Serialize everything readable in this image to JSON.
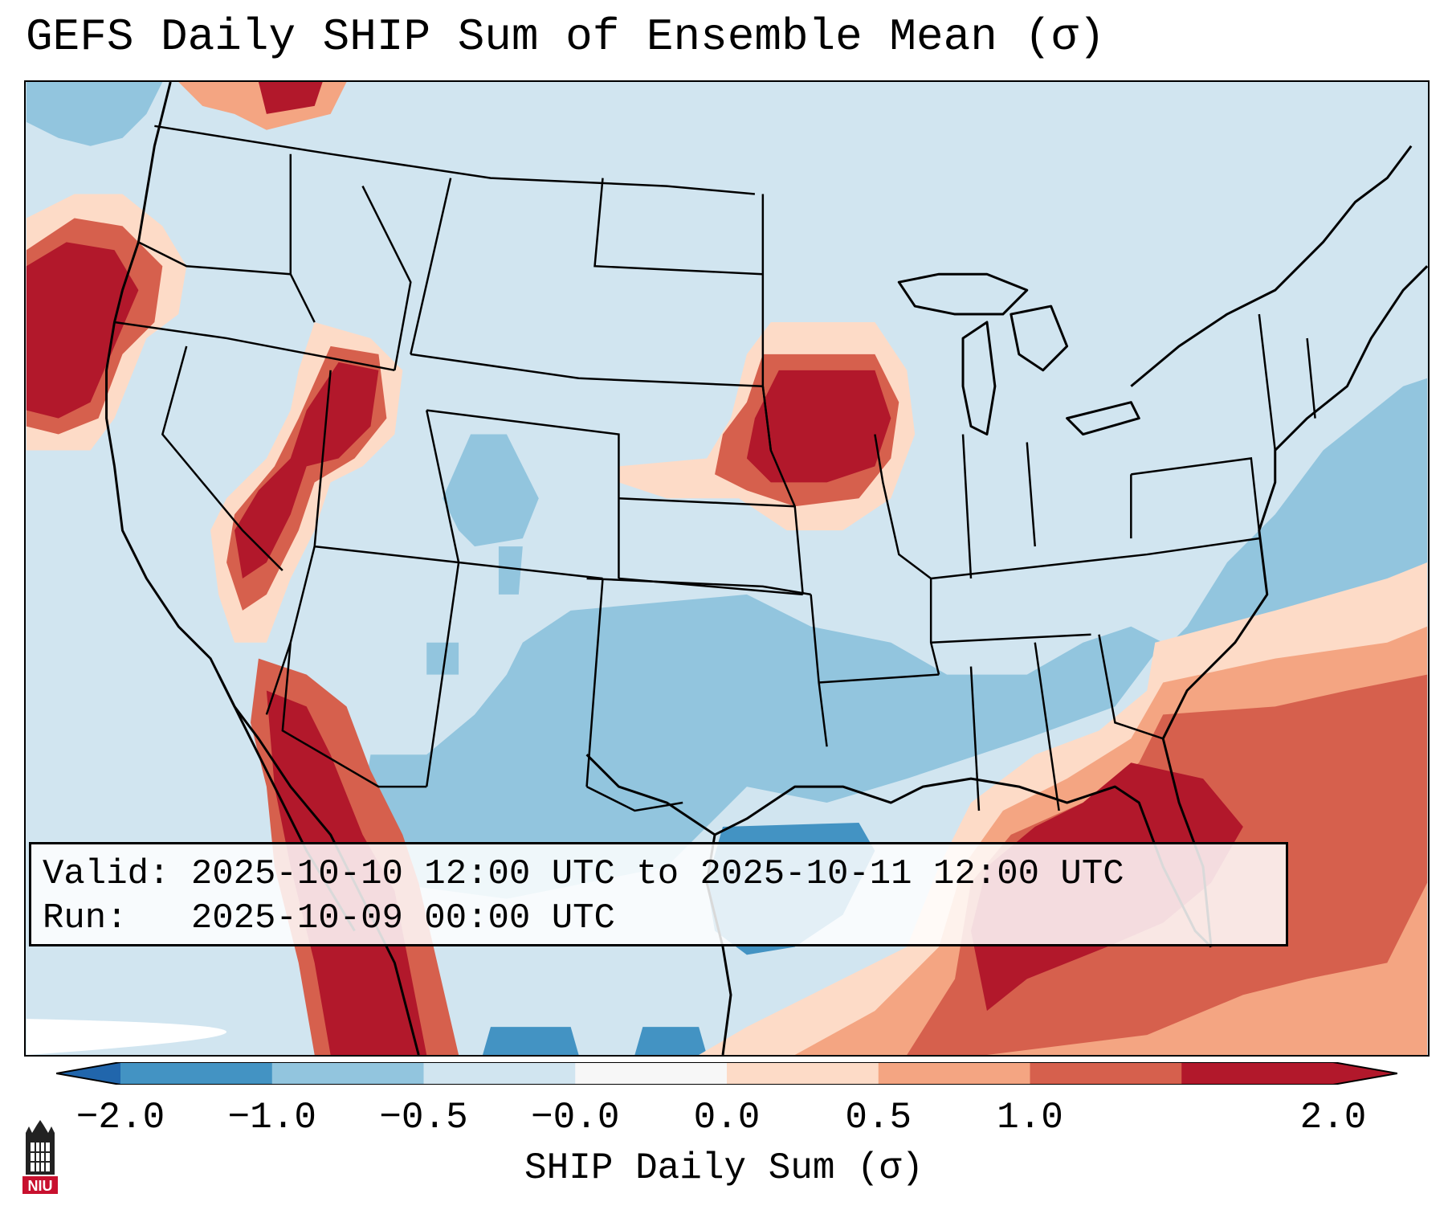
{
  "title": "GEFS Daily SHIP Sum of Ensemble Mean (σ)",
  "info": {
    "valid_label": "Valid:",
    "valid_value": "2025-10-10 12:00 UTC to 2025-10-11 12:00 UTC",
    "run_label": "Run:",
    "run_value": "2025-10-09 00:00 UTC"
  },
  "colorbar": {
    "label": "SHIP Daily Sum (σ)",
    "ticks": [
      "−2.0",
      "−1.0",
      "−0.5",
      "−0.0",
      "0.0",
      "0.5",
      "1.0",
      "2.0"
    ],
    "colors": [
      "#4393c3",
      "#92c5de",
      "#d1e5f0",
      "#f7f7f7",
      "#fddbc7",
      "#f4a582",
      "#d6604d",
      "#b2182b"
    ],
    "extend_low_color": "#2166ac",
    "extend_high_color": "#b2182b"
  },
  "map": {
    "region": "Contiguous United States",
    "background_color": "#d1e5f0",
    "outside_domain_color": "#ffffff",
    "line_color": "#000000",
    "features": [
      "Pacific Northwest high anomaly",
      "Iowa high anomaly",
      "Gulf of Mexico & Florida high anomaly",
      "Atlantic high anomaly",
      "Gulf Coast low anomaly"
    ]
  },
  "logo": {
    "text": "NIU"
  }
}
